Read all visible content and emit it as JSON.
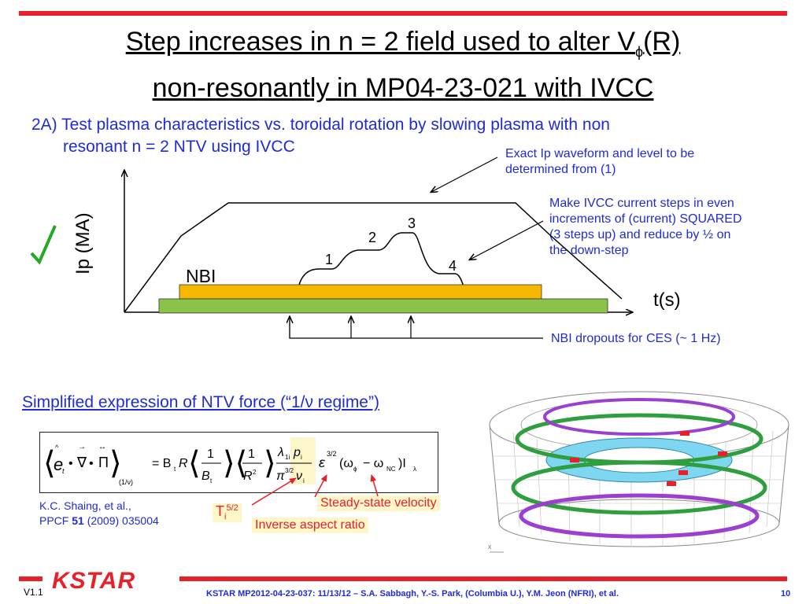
{
  "title": {
    "line1_prefix": "Step increases in n = 2 field used to alter V",
    "line1_sub": "ϕ",
    "line1_suffix": "(R)",
    "line2": "non-resonantly in MP04-23-021 with IVCC"
  },
  "item": {
    "line1": "2A) Test plasma characteristics vs. toroidal rotation by slowing plasma with non",
    "line2": "resonant n = 2 NTV using IVCC"
  },
  "diagram": {
    "ylabel": "Ip (MA)",
    "xlabel": "t(s)",
    "nbi": "NBI",
    "steps": [
      "1",
      "2",
      "3",
      "4"
    ]
  },
  "notes": {
    "exact_line1": "Exact Ip waveform and level to be",
    "exact_line2": "determined from (1)",
    "ivcc_line1": "Make IVCC current steps in even",
    "ivcc_line2": "increments of (current) SQUARED",
    "ivcc_line3": "(3 steps up) and reduce by ½ on",
    "ivcc_line4": "the down-step",
    "nbi_dropouts": "NBI dropouts for CES (~ 1 Hz)"
  },
  "ntv": {
    "heading": "Simplified expression of NTV force (“1/ν regime”)",
    "ref_line1": "K.C. Shaing, et al.,",
    "ref_line2_prefix": "PPCF ",
    "ref_line2_bold": "51",
    "ref_line2_suffix": " (2009) 035004",
    "ti_base": "T",
    "ti_sub": "i",
    "ti_sup": "5/2",
    "steady_state": "Steady-state velocity",
    "inverse_aspect": "Inverse aspect ratio"
  },
  "footer": {
    "version": "V1.1",
    "logo": "KSTAR",
    "credit": "KSTAR MP2012-04-23-037: 11/13/12 – S.A. Sabbagh, Y.-S. Park, (Columbia U.), Y.M. Jeon (NFRI), et al.",
    "page": "10"
  },
  "colors": {
    "accent_red": "#e8202a",
    "text_blue": "#1f2bd6",
    "nbi_orange": "#f5b700",
    "nbi_green": "#8bc34a",
    "check_green": "#22aa22"
  }
}
